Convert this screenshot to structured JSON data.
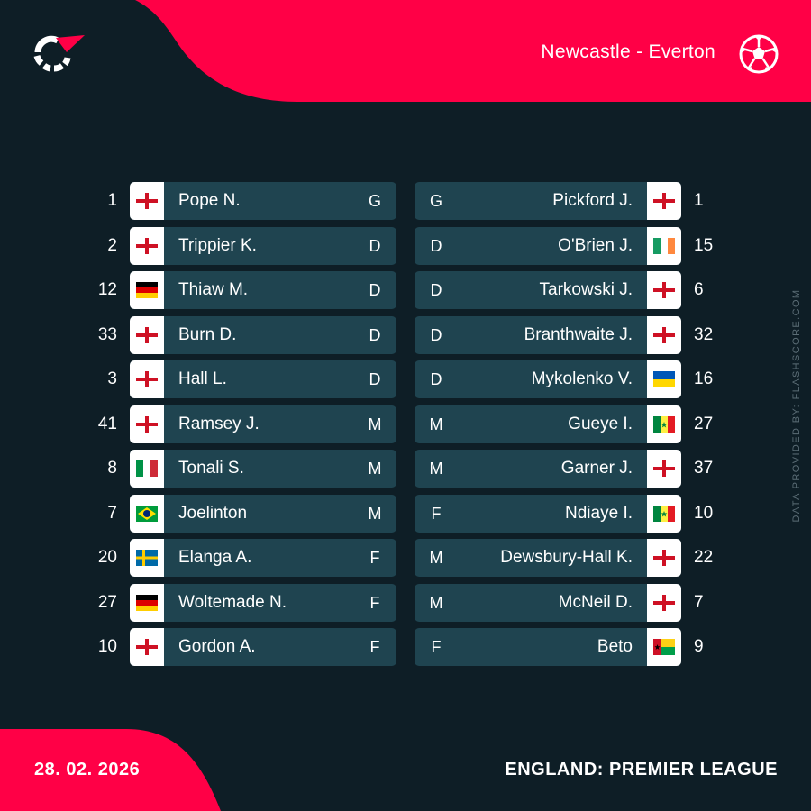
{
  "header": {
    "match": "Newcastle - Everton"
  },
  "colors": {
    "accent": "#ff0046",
    "background": "#0e1e26",
    "bar": "#1f4450",
    "muted": "#5b6d76"
  },
  "watermark": "DATA PROVIDED BY: FLASHSCORE.COM",
  "home": [
    {
      "number": "1",
      "name": "Pope N.",
      "position": "G",
      "flag": "england"
    },
    {
      "number": "2",
      "name": "Trippier K.",
      "position": "D",
      "flag": "england"
    },
    {
      "number": "12",
      "name": "Thiaw M.",
      "position": "D",
      "flag": "germany"
    },
    {
      "number": "33",
      "name": "Burn D.",
      "position": "D",
      "flag": "england"
    },
    {
      "number": "3",
      "name": "Hall L.",
      "position": "D",
      "flag": "england"
    },
    {
      "number": "41",
      "name": "Ramsey J.",
      "position": "M",
      "flag": "england"
    },
    {
      "number": "8",
      "name": "Tonali S.",
      "position": "M",
      "flag": "italy"
    },
    {
      "number": "7",
      "name": "Joelinton",
      "position": "M",
      "flag": "brazil"
    },
    {
      "number": "20",
      "name": "Elanga A.",
      "position": "F",
      "flag": "sweden"
    },
    {
      "number": "27",
      "name": "Woltemade N.",
      "position": "F",
      "flag": "germany"
    },
    {
      "number": "10",
      "name": "Gordon A.",
      "position": "F",
      "flag": "england"
    }
  ],
  "away": [
    {
      "number": "1",
      "name": "Pickford J.",
      "position": "G",
      "flag": "england"
    },
    {
      "number": "15",
      "name": "O'Brien J.",
      "position": "D",
      "flag": "ireland"
    },
    {
      "number": "6",
      "name": "Tarkowski J.",
      "position": "D",
      "flag": "england"
    },
    {
      "number": "32",
      "name": "Branthwaite J.",
      "position": "D",
      "flag": "england"
    },
    {
      "number": "16",
      "name": "Mykolenko V.",
      "position": "D",
      "flag": "ukraine"
    },
    {
      "number": "27",
      "name": "Gueye I.",
      "position": "M",
      "flag": "senegal"
    },
    {
      "number": "37",
      "name": "Garner J.",
      "position": "M",
      "flag": "england"
    },
    {
      "number": "10",
      "name": "Ndiaye I.",
      "position": "F",
      "flag": "senegal"
    },
    {
      "number": "22",
      "name": "Dewsbury-Hall K.",
      "position": "M",
      "flag": "england"
    },
    {
      "number": "7",
      "name": "McNeil D.",
      "position": "M",
      "flag": "england"
    },
    {
      "number": "9",
      "name": "Beto",
      "position": "F",
      "flag": "guinea-bissau"
    }
  ],
  "footer": {
    "date": "28. 02. 2026",
    "league": "ENGLAND: PREMIER LEAGUE"
  }
}
